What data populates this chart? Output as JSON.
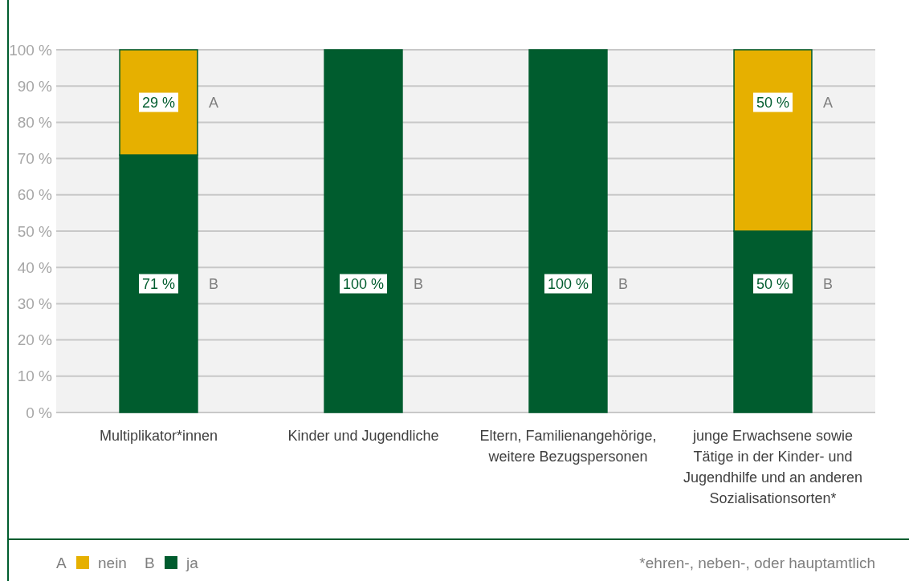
{
  "chart_data": {
    "type": "bar",
    "stacked": true,
    "categories": [
      "Multiplikator*innen",
      "Kinder und Jugendliche",
      "Eltern, Familienangehörige, weitere Bezugspersonen",
      "junge Erwachsene sowie Tätige in der Kinder- und Jugendhilfe und an anderen Sozialisationsorten*"
    ],
    "series": [
      {
        "name": "ja",
        "color": "#005c2e",
        "values": [
          71,
          100,
          100,
          50
        ],
        "value_labels": [
          "71 %",
          "100 %",
          "100 %",
          "50 %"
        ]
      },
      {
        "name": "nein",
        "color": "#e6b000",
        "values": [
          29,
          0,
          0,
          50
        ],
        "value_labels": [
          "29 %",
          null,
          null,
          "50 %"
        ]
      }
    ],
    "ylim": [
      0,
      100
    ],
    "yticks": [
      {
        "value": 0,
        "label": "0 %"
      },
      {
        "value": 10,
        "label": "10 %"
      },
      {
        "value": 20,
        "label": "20 %"
      },
      {
        "value": 30,
        "label": "30 %"
      },
      {
        "value": 40,
        "label": "40 %"
      },
      {
        "value": 50,
        "label": "50 %"
      },
      {
        "value": 60,
        "label": "60 %"
      },
      {
        "value": 70,
        "label": "70 %"
      },
      {
        "value": 80,
        "label": "80 %"
      },
      {
        "value": 90,
        "label": "90 %"
      },
      {
        "value": 100,
        "label": "100 %"
      }
    ],
    "grid": "y",
    "legend": "bottom left",
    "annotations": [
      "A",
      "B",
      "*ehren-, neben-, oder hauptamtlich"
    ]
  }
}
